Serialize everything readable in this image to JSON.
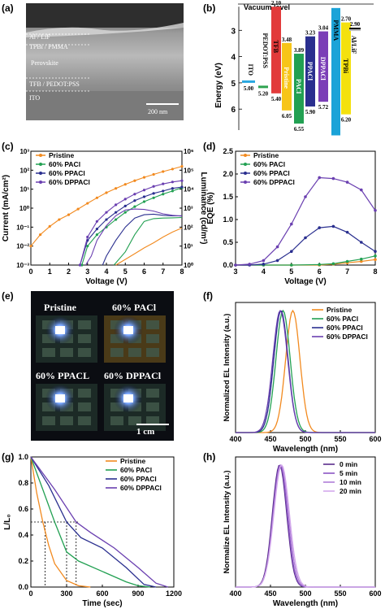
{
  "panels": {
    "a": {
      "label": "(a)",
      "layers": [
        "Al / LiF",
        "TPBi / PMMA",
        "Perovskite",
        "TFB / PEDOT:PSS",
        "ITO"
      ],
      "scale_bar": "200 nm"
    },
    "b": {
      "label": "(b)",
      "vacuum": "Vacuum level",
      "ylabel": "Energy (eV)",
      "yticks": [
        "3",
        "4",
        "5",
        "6"
      ]
    },
    "c": {
      "label": "(c)",
      "xlabel": "Voltage (V)",
      "ylabel_left": "Current (mA/cm²)",
      "ylabel_right": "Luminance (cd/m²)"
    },
    "d": {
      "label": "(d)",
      "xlabel": "Voltage (V)",
      "ylabel": "EQE (%)"
    },
    "e": {
      "label": "(e)",
      "photo_labels": [
        "Pristine",
        "60% PACl",
        "60% PPACL",
        "60% DPPACl"
      ],
      "scale_bar": "1 cm"
    },
    "f": {
      "label": "(f)",
      "xlabel": "Wavelength (nm)",
      "ylabel": "Normalized EL Intensity (a.u.)"
    },
    "g": {
      "label": "(g)",
      "xlabel": "Time (sec)",
      "ylabel": "L/L₀"
    },
    "h": {
      "label": "(h)",
      "xlabel": "Wavelength (nm)",
      "ylabel": "Normalize EL Intensity (a.u.)"
    }
  },
  "legend_main": [
    "Pristine",
    "60% PACl",
    "60% PPACl",
    "60% DPPACl"
  ],
  "colors": {
    "pristine": "#f28a1f",
    "paci": "#22a052",
    "ppaci": "#2a2f8f",
    "dppaci": "#6a3fb0"
  },
  "chart_data": [
    {
      "type": "bar",
      "title": "",
      "ylabel": "Energy (eV)",
      "ylim": [
        2,
        7
      ],
      "levels": [
        {
          "name": "ITO",
          "bottom": 5.0,
          "color": "#29a7e0"
        },
        {
          "name": "PEDOT:PSS",
          "bottom": 5.2,
          "color": "#2ea44f"
        },
        {
          "name": "TFB",
          "top": 2.1,
          "bottom": 5.4,
          "color": "#e23b3b"
        },
        {
          "name": "Pristine",
          "top": 3.48,
          "bottom": 6.05,
          "color": "#f7c518"
        },
        {
          "name": "PACl",
          "top": 3.89,
          "bottom": 6.55,
          "color": "#22a052"
        },
        {
          "name": "PPACl",
          "top": 3.23,
          "bottom": 5.9,
          "color": "#2a2f8f"
        },
        {
          "name": "DPPACl",
          "top": 3.04,
          "bottom": 5.72,
          "color": "#7b3fb7"
        },
        {
          "name": "PMMA",
          "color": "#1ba3d8"
        },
        {
          "name": "TPBi",
          "top": 2.7,
          "bottom": 6.2,
          "color": "#f4e10e"
        },
        {
          "name": "Al/LiF",
          "top": 2.9,
          "color": "#9a9a9a"
        }
      ],
      "value_labels": [
        "2.10",
        "3.48",
        "3.89",
        "3.23",
        "3.04",
        "2.70",
        "2.90",
        "5.00",
        "5.20",
        "5.40",
        "6.05",
        "6.55",
        "5.90",
        "5.72",
        "6.20"
      ]
    },
    {
      "type": "line",
      "title": "",
      "xlabel": "Voltage (V)",
      "ylabel": "Current (mA/cm²)",
      "xlim": [
        0,
        8
      ],
      "ylim": [
        0.001,
        1000
      ],
      "yscale": "log",
      "xticks": [
        "0",
        "1",
        "2",
        "3",
        "4",
        "5",
        "6",
        "7",
        "8"
      ],
      "yticks": [
        "10⁻³",
        "10⁻²",
        "10⁻¹",
        "10⁰",
        "10¹",
        "10²",
        "10³"
      ],
      "y2ticks": [
        "10⁰",
        "10¹",
        "10²",
        "10³",
        "10⁴",
        "10⁵",
        "10⁶"
      ],
      "y2lim": [
        1,
        1000000
      ],
      "series": [
        {
          "name": "Pristine",
          "x": [
            0,
            0.5,
            1,
            1.5,
            2,
            2.5,
            3,
            3.5,
            4,
            4.5,
            5,
            5.5,
            6,
            6.5,
            7,
            7.5,
            8
          ],
          "y": [
            0.01,
            0.04,
            0.11,
            0.25,
            0.45,
            0.9,
            1.8,
            3.5,
            6.5,
            11,
            18,
            28,
            42,
            60,
            85,
            115,
            160
          ]
        },
        {
          "name": "60% PACl",
          "x": [
            2.7,
            3,
            3.5,
            4,
            4.5,
            5,
            5.5,
            6,
            6.5,
            7,
            7.5,
            8
          ],
          "y": [
            0.001,
            0.01,
            0.04,
            0.1,
            0.25,
            0.6,
            1.2,
            2.2,
            3.5,
            5.5,
            8,
            12
          ]
        },
        {
          "name": "60% PPACl",
          "x": [
            2.6,
            3,
            3.5,
            4,
            4.5,
            5,
            5.5,
            6,
            6.5,
            7,
            7.5,
            8
          ],
          "y": [
            0.001,
            0.02,
            0.08,
            0.25,
            0.6,
            1.3,
            2.5,
            4,
            6,
            8,
            11,
            13
          ]
        },
        {
          "name": "60% DPPACl",
          "x": [
            2.6,
            3,
            3.5,
            4,
            4.5,
            5,
            5.5,
            6,
            6.5,
            7,
            7.5,
            8
          ],
          "y": [
            0.001,
            0.03,
            0.2,
            0.6,
            1.5,
            3,
            5.5,
            9,
            14,
            19,
            24,
            28
          ]
        }
      ],
      "luminance_series": [
        {
          "name": "Pristine",
          "x": [
            4.5,
            5,
            5.5,
            6,
            6.5,
            7,
            7.5,
            8
          ],
          "y": [
            1,
            2,
            4,
            8,
            15,
            30,
            55,
            90
          ]
        },
        {
          "name": "60% PACl",
          "x": [
            4.4,
            5,
            5.5,
            6,
            6.5,
            7,
            7.5,
            8
          ],
          "y": [
            1,
            5,
            40,
            200,
            280,
            300,
            310,
            320
          ]
        },
        {
          "name": "60% PPACl",
          "x": [
            3.8,
            4,
            4.5,
            5,
            5.5,
            6,
            6.5,
            7,
            7.5,
            8
          ],
          "y": [
            1,
            3,
            20,
            100,
            300,
            450,
            480,
            420,
            390,
            400
          ]
        },
        {
          "name": "60% DPPACl",
          "x": [
            2.9,
            3.2,
            3.5,
            4,
            4.5,
            5,
            5.5,
            6,
            6.5,
            7,
            7.5,
            8
          ],
          "y": [
            1,
            3,
            20,
            120,
            400,
            800,
            900,
            850,
            700,
            500,
            420,
            380
          ]
        }
      ]
    },
    {
      "type": "line",
      "title": "",
      "xlabel": "Voltage (V)",
      "ylabel": "EQE (%)",
      "xlim": [
        3,
        8
      ],
      "ylim": [
        0,
        2.5
      ],
      "xticks": [
        "3",
        "4",
        "5",
        "6",
        "7",
        "8"
      ],
      "yticks": [
        "0.0",
        "0.5",
        "1.0",
        "1.5",
        "2.0",
        "2.5"
      ],
      "series": [
        {
          "name": "Pristine",
          "x": [
            3,
            4,
            5,
            6,
            6.5,
            7,
            7.5,
            8
          ],
          "y": [
            0,
            0,
            0,
            0,
            0.02,
            0.05,
            0.08,
            0.12
          ]
        },
        {
          "name": "60% PACl",
          "x": [
            3,
            4,
            5,
            6,
            6.5,
            7,
            7.5,
            8
          ],
          "y": [
            0,
            0,
            0,
            0.01,
            0.03,
            0.08,
            0.13,
            0.2
          ]
        },
        {
          "name": "60% PPACl",
          "x": [
            3,
            3.5,
            4,
            4.5,
            5,
            5.5,
            6,
            6.5,
            7,
            7.5,
            8
          ],
          "y": [
            0,
            0,
            0.02,
            0.1,
            0.3,
            0.6,
            0.82,
            0.85,
            0.72,
            0.5,
            0.3
          ]
        },
        {
          "name": "60% DPPACl",
          "x": [
            3,
            3.5,
            4,
            4.5,
            5,
            5.5,
            6,
            6.5,
            7,
            7.5,
            8
          ],
          "y": [
            0,
            0.02,
            0.1,
            0.4,
            0.9,
            1.5,
            1.92,
            1.9,
            1.82,
            1.65,
            1.2
          ]
        }
      ]
    },
    {
      "type": "line",
      "title": "",
      "xlabel": "Wavelength (nm)",
      "ylabel": "Normalized EL Intensity (a.u.)",
      "xlim": [
        400,
        600
      ],
      "ylim": [
        0,
        1
      ],
      "xticks": [
        "400",
        "450",
        "500",
        "550",
        "600"
      ],
      "series": [
        {
          "name": "Pristine",
          "peak": 482,
          "fwhm": 24
        },
        {
          "name": "60% PACl",
          "peak": 468,
          "fwhm": 24
        },
        {
          "name": "60% PPACl",
          "peak": 465,
          "fwhm": 24
        },
        {
          "name": "60% DPPACl",
          "peak": 464,
          "fwhm": 25
        }
      ]
    },
    {
      "type": "line",
      "title": "",
      "xlabel": "Time (sec)",
      "ylabel": "L/L₀",
      "xlim": [
        0,
        1200
      ],
      "ylim": [
        0,
        1
      ],
      "xticks": [
        "0",
        "300",
        "600",
        "900",
        "1200"
      ],
      "yticks": [
        "0.0",
        "0.2",
        "0.4",
        "0.6",
        "0.8",
        "1.0"
      ],
      "series": [
        {
          "name": "Pristine",
          "x": [
            0,
            50,
            100,
            150,
            200,
            300,
            400,
            500
          ],
          "y": [
            1,
            0.72,
            0.5,
            0.32,
            0.18,
            0.05,
            0.01,
            0
          ]
        },
        {
          "name": "60% PACl",
          "x": [
            0,
            100,
            200,
            300,
            400,
            600,
            800,
            900,
            1000
          ],
          "y": [
            1,
            0.75,
            0.5,
            0.27,
            0.2,
            0.12,
            0.04,
            0.01,
            0
          ]
        },
        {
          "name": "60% PPACl",
          "x": [
            0,
            150,
            300,
            420,
            600,
            800,
            950,
            1050
          ],
          "y": [
            1,
            0.78,
            0.5,
            0.38,
            0.3,
            0.15,
            0.02,
            0
          ]
        },
        {
          "name": "60% DPPACl",
          "x": [
            0,
            200,
            380,
            500,
            700,
            900,
            1050,
            1150
          ],
          "y": [
            1,
            0.75,
            0.5,
            0.42,
            0.3,
            0.15,
            0.03,
            0
          ]
        }
      ],
      "half_life_marks": [
        120,
        300,
        380
      ]
    },
    {
      "type": "line",
      "title": "",
      "xlabel": "Wavelength (nm)",
      "ylabel": "Normalize EL Intensity (a.u.)",
      "xlim": [
        400,
        600
      ],
      "ylim": [
        0,
        1
      ],
      "xticks": [
        "400",
        "450",
        "500",
        "550",
        "600"
      ],
      "series": [
        {
          "name": "0 min",
          "peak": 463,
          "fwhm": 24,
          "color": "#5a2d8c"
        },
        {
          "name": "5 min",
          "peak": 464,
          "fwhm": 24,
          "color": "#8a55c4"
        },
        {
          "name": "10 min",
          "peak": 465,
          "fwhm": 25,
          "color": "#b07fd8"
        },
        {
          "name": "20 min",
          "peak": 466,
          "fwhm": 26,
          "color": "#d3a8ec"
        }
      ]
    }
  ]
}
